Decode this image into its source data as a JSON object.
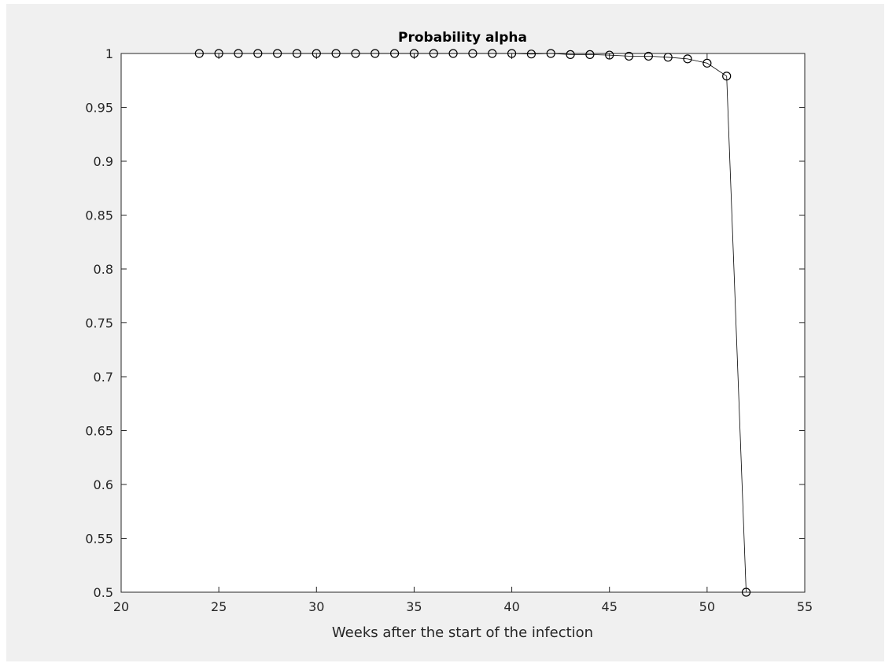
{
  "chart_data": {
    "type": "line",
    "title": "Probability alpha",
    "xlabel": "Weeks after the start of the infection",
    "ylabel": "",
    "xlim": [
      20,
      55
    ],
    "ylim": [
      0.5,
      1
    ],
    "xticks": [
      20,
      25,
      30,
      35,
      40,
      45,
      50,
      55
    ],
    "xtick_labels": [
      "20",
      "25",
      "30",
      "35",
      "40",
      "45",
      "50",
      "55"
    ],
    "yticks": [
      0.5,
      0.55,
      0.6,
      0.65,
      0.7,
      0.75,
      0.8,
      0.85,
      0.9,
      0.95,
      1
    ],
    "ytick_labels": [
      "0.5",
      "0.55",
      "0.6",
      "0.65",
      "0.7",
      "0.75",
      "0.8",
      "0.85",
      "0.9",
      "0.95",
      "1"
    ],
    "grid": false,
    "marker": "open-circle",
    "series": [
      {
        "color": "#000000",
        "x": [
          24,
          25,
          26,
          27,
          28,
          29,
          30,
          31,
          32,
          33,
          34,
          35,
          36,
          37,
          38,
          39,
          40,
          41,
          42,
          43,
          44,
          45,
          46,
          47,
          48,
          49,
          50,
          51,
          52
        ],
        "values": [
          1.0,
          1.0,
          1.0,
          1.0,
          1.0,
          1.0,
          1.0,
          1.0,
          1.0,
          1.0,
          1.0,
          1.0,
          1.0,
          1.0,
          1.0,
          1.0,
          1.0,
          0.9995,
          1.0,
          0.999,
          0.999,
          0.9985,
          0.9975,
          0.9975,
          0.9965,
          0.995,
          0.991,
          0.979,
          0.5
        ]
      }
    ]
  }
}
